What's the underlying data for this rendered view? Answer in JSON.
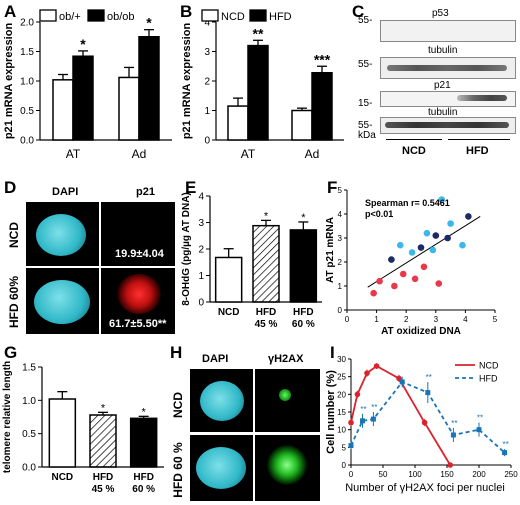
{
  "panels": {
    "A": {
      "letter": "A"
    },
    "B": {
      "letter": "B"
    },
    "C": {
      "letter": "C"
    },
    "D": {
      "letter": "D"
    },
    "E": {
      "letter": "E"
    },
    "F": {
      "letter": "F"
    },
    "G": {
      "letter": "G"
    },
    "H": {
      "letter": "H"
    },
    "I": {
      "letter": "I"
    }
  },
  "chart_data": [
    {
      "id": "A",
      "type": "bar",
      "ylabel": "p21 mRNA expression",
      "ylim": [
        0,
        2
      ],
      "yticks": [
        "0.0",
        "0.5",
        "1.0",
        "1.5",
        "2.0"
      ],
      "categories": [
        "AT",
        "Ad"
      ],
      "series": [
        {
          "name": "ob/+",
          "color": "#ffffff",
          "values": [
            1.02,
            1.06
          ],
          "errors": [
            0.09,
            0.17
          ]
        },
        {
          "name": "ob/ob",
          "color": "#000000",
          "values": [
            1.42,
            1.75
          ],
          "errors": [
            0.09,
            0.12
          ]
        }
      ],
      "annotations": [
        "*",
        "*"
      ],
      "legend": "top-left"
    },
    {
      "id": "B",
      "type": "bar",
      "ylabel": "p21 mRNA expression",
      "ylim": [
        0,
        4
      ],
      "yticks": [
        "0",
        "1",
        "2",
        "3",
        "4"
      ],
      "categories": [
        "AT",
        "Ad"
      ],
      "series": [
        {
          "name": "NCD",
          "color": "#ffffff",
          "values": [
            1.15,
            1.0
          ],
          "errors": [
            0.27,
            0.08
          ]
        },
        {
          "name": "HFD",
          "color": "#000000",
          "values": [
            3.2,
            2.28
          ],
          "errors": [
            0.18,
            0.22
          ]
        }
      ],
      "annotations": [
        "**",
        "***"
      ],
      "legend": "top-left"
    },
    {
      "id": "E",
      "type": "bar",
      "ylabel": "8-OHdG (pg/µg AT DNA)",
      "ylim": [
        0,
        4
      ],
      "yticks": [
        "0",
        "1",
        "2",
        "3",
        "4"
      ],
      "categories": [
        "NCD",
        "HFD 45 %",
        "HFD 60 %"
      ],
      "category_lines": [
        [
          "NCD"
        ],
        [
          "HFD",
          "45 %"
        ],
        [
          "HFD",
          "60 %"
        ]
      ],
      "values": [
        1.68,
        2.88,
        2.72
      ],
      "errors": [
        0.33,
        0.2,
        0.3
      ],
      "styles": [
        "white",
        "hatch",
        "black"
      ],
      "annotations": [
        "",
        "*",
        "*"
      ]
    },
    {
      "id": "F",
      "type": "scatter",
      "xlabel": "AT oxidized DNA",
      "ylabel": "AT p21 mRNA",
      "xlim": [
        0,
        5
      ],
      "ylim": [
        0,
        5
      ],
      "xticks": [
        "0",
        "1",
        "2",
        "3",
        "4",
        "5"
      ],
      "yticks": [
        "0",
        "1",
        "2",
        "3",
        "4",
        "5"
      ],
      "annotation_lines": [
        "Spearman r= 0.5461",
        "p<0.01"
      ],
      "regression": [
        [
          0.7,
          0.95
        ],
        [
          4.5,
          3.9
        ]
      ],
      "points": [
        {
          "x": 0.9,
          "y": 0.7,
          "color": "#e8394a"
        },
        {
          "x": 1.1,
          "y": 1.2,
          "color": "#e8394a"
        },
        {
          "x": 1.6,
          "y": 1.0,
          "color": "#e8394a"
        },
        {
          "x": 1.9,
          "y": 1.5,
          "color": "#e8394a"
        },
        {
          "x": 2.3,
          "y": 1.3,
          "color": "#e8394a"
        },
        {
          "x": 2.6,
          "y": 1.8,
          "color": "#e8394a"
        },
        {
          "x": 3.1,
          "y": 1.1,
          "color": "#e8394a"
        },
        {
          "x": 1.5,
          "y": 2.1,
          "color": "#1c2a66"
        },
        {
          "x": 2.5,
          "y": 2.6,
          "color": "#1c2a66"
        },
        {
          "x": 3.0,
          "y": 3.1,
          "color": "#1c2a66"
        },
        {
          "x": 3.4,
          "y": 3.0,
          "color": "#1c2a66"
        },
        {
          "x": 4.1,
          "y": 3.9,
          "color": "#1c2a66"
        },
        {
          "x": 2.7,
          "y": 3.2,
          "color": "#3bb8e8"
        },
        {
          "x": 3.2,
          "y": 4.6,
          "color": "#3bb8e8"
        },
        {
          "x": 3.5,
          "y": 3.6,
          "color": "#3bb8e8"
        },
        {
          "x": 2.2,
          "y": 2.4,
          "color": "#3bb8e8"
        },
        {
          "x": 3.9,
          "y": 2.7,
          "color": "#3bb8e8"
        },
        {
          "x": 1.8,
          "y": 2.7,
          "color": "#3bb8e8"
        },
        {
          "x": 2.9,
          "y": 2.5,
          "color": "#3bb8e8"
        }
      ]
    },
    {
      "id": "G",
      "type": "bar",
      "ylabel": "telomere relative length",
      "ylim": [
        0,
        1.5
      ],
      "yticks": [
        "0.0",
        "0.5",
        "1.0",
        "1.5"
      ],
      "categories": [
        "NCD",
        "HFD 45 %",
        "HFD 60 %"
      ],
      "category_lines": [
        [
          "NCD"
        ],
        [
          "HFD",
          "45 %"
        ],
        [
          "HFD",
          "60 %"
        ]
      ],
      "values": [
        1.02,
        0.78,
        0.73
      ],
      "errors": [
        0.11,
        0.04,
        0.03
      ],
      "styles": [
        "white",
        "hatch",
        "black"
      ],
      "annotations": [
        "",
        "*",
        "*"
      ]
    },
    {
      "id": "I",
      "type": "line",
      "xlabel": "Number of γH2AX foci per nuclei",
      "ylabel": "Cell number (%)",
      "xlim": [
        0,
        250
      ],
      "ylim": [
        0,
        30
      ],
      "xticks": [
        "0",
        "50",
        "100",
        "150",
        "200",
        "250"
      ],
      "yticks": [
        "0",
        "5",
        "10",
        "15",
        "20",
        "25",
        "30"
      ],
      "legend": "top-right",
      "series": [
        {
          "name": "NCD",
          "color": "#d9232e",
          "dash": false,
          "x": [
            0,
            10,
            25,
            40,
            75,
            115,
            155
          ],
          "y": [
            12,
            20,
            26,
            28,
            24.5,
            12,
            0
          ],
          "errors": [
            1,
            1,
            1,
            0.8,
            1,
            1,
            0
          ]
        },
        {
          "name": "HFD",
          "color": "#1a74b8",
          "dash": true,
          "x": [
            0,
            18,
            35,
            80,
            120,
            160,
            200,
            240
          ],
          "y": [
            5.5,
            12.5,
            13,
            23.5,
            20.5,
            8.5,
            10,
            3.5
          ],
          "errors": [
            1,
            2,
            2,
            1.5,
            3,
            2,
            2,
            1
          ]
        }
      ],
      "annotations_x": [
        18,
        35,
        120,
        160,
        200,
        240
      ],
      "annotation": "**"
    }
  ],
  "blot": {
    "labels": [
      "p53",
      "tubulin",
      "p21",
      "tubulin"
    ],
    "markers": [
      "55-",
      "55-",
      "15-",
      "55-"
    ],
    "unit": "kDa",
    "groups": [
      "NCD",
      "HFD"
    ]
  },
  "micro_D": {
    "col_headers": [
      "DAPI",
      "p21"
    ],
    "row_labels": [
      "NCD",
      "HFD 60%"
    ],
    "values": [
      "19.9±4.04",
      "61.7±5.50**"
    ]
  },
  "micro_H": {
    "col_headers": [
      "DAPI",
      "γH2AX"
    ],
    "row_labels": [
      "NCD",
      "HFD 60 %"
    ]
  }
}
